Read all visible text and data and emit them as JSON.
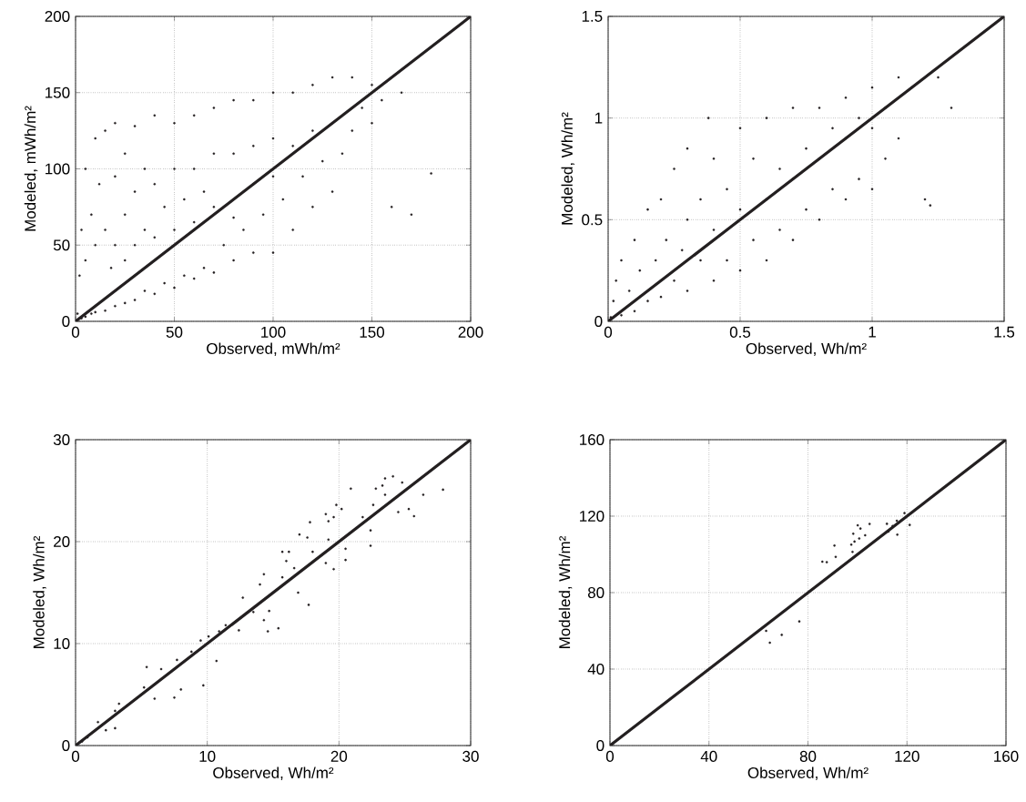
{
  "chart_data": [
    {
      "type": "scatter",
      "xlabel": "Observed, mWh/m²",
      "ylabel": "Modeled, mWh/m²",
      "xlim": [
        0,
        200
      ],
      "ylim": [
        0,
        200
      ],
      "xticks": [
        0,
        50,
        100,
        150,
        200
      ],
      "yticks": [
        0,
        50,
        100,
        150,
        200
      ],
      "grid": true,
      "series": [
        {
          "type": "scatter",
          "marker": "circle",
          "color": "#231f20",
          "x": [
            1,
            2,
            3,
            3,
            5,
            5,
            5,
            8,
            8,
            10,
            10,
            10,
            12,
            15,
            15,
            15,
            18,
            20,
            20,
            20,
            20,
            25,
            25,
            25,
            25,
            30,
            30,
            30,
            30,
            35,
            35,
            35,
            40,
            40,
            40,
            40,
            45,
            45,
            50,
            50,
            50,
            50,
            55,
            55,
            60,
            60,
            60,
            60,
            65,
            65,
            70,
            70,
            70,
            70,
            75,
            80,
            80,
            80,
            80,
            85,
            90,
            90,
            90,
            90,
            95,
            100,
            100,
            100,
            100,
            105,
            110,
            110,
            110,
            115,
            120,
            120,
            120,
            125,
            130,
            130,
            130,
            135,
            140,
            140,
            145,
            150,
            150,
            155,
            160,
            165,
            170,
            180
          ],
          "values": [
            5,
            30,
            60,
            2,
            100,
            40,
            3,
            70,
            5,
            120,
            50,
            6,
            90,
            125,
            60,
            7,
            35,
            130,
            95,
            50,
            10,
            110,
            70,
            40,
            12,
            128,
            85,
            50,
            14,
            100,
            60,
            20,
            135,
            90,
            55,
            18,
            75,
            25,
            130,
            100,
            60,
            22,
            80,
            30,
            135,
            100,
            65,
            28,
            85,
            35,
            140,
            110,
            75,
            32,
            50,
            145,
            110,
            68,
            40,
            60,
            145,
            115,
            90,
            45,
            70,
            150,
            120,
            95,
            45,
            80,
            150,
            115,
            60,
            95,
            155,
            125,
            75,
            105,
            160,
            130,
            85,
            110,
            160,
            125,
            140,
            155,
            130,
            145,
            75,
            150,
            70,
            97
          ]
        },
        {
          "type": "line",
          "marker": "none",
          "color": "#231f20",
          "x": [
            0,
            200
          ],
          "values": [
            0,
            200
          ]
        }
      ]
    },
    {
      "type": "scatter",
      "xlabel": "Observed, Wh/m²",
      "ylabel": "Modeled, Wh/m²",
      "xlim": [
        0,
        1.5
      ],
      "ylim": [
        0,
        1.5
      ],
      "xticks": [
        0,
        0.5,
        1,
        1.5
      ],
      "yticks": [
        0,
        0.5,
        1,
        1.5
      ],
      "grid": true,
      "series": [
        {
          "type": "scatter",
          "marker": "circle",
          "color": "#231f20",
          "x": [
            0.01,
            0.02,
            0.03,
            0.05,
            0.05,
            0.08,
            0.1,
            0.1,
            0.12,
            0.15,
            0.15,
            0.18,
            0.2,
            0.2,
            0.22,
            0.25,
            0.25,
            0.28,
            0.3,
            0.3,
            0.3,
            0.35,
            0.35,
            0.38,
            0.4,
            0.4,
            0.4,
            0.45,
            0.45,
            0.5,
            0.5,
            0.5,
            0.55,
            0.55,
            0.6,
            0.6,
            0.6,
            0.65,
            0.65,
            0.7,
            0.7,
            0.7,
            0.75,
            0.75,
            0.8,
            0.8,
            0.8,
            0.85,
            0.85,
            0.9,
            0.9,
            0.9,
            0.95,
            0.95,
            1.0,
            1.0,
            1.0,
            1.05,
            1.05,
            1.1,
            1.1,
            1.15,
            1.2,
            1.22,
            1.25,
            1.3
          ],
          "values": [
            0.02,
            0.1,
            0.2,
            0.03,
            0.3,
            0.15,
            0.4,
            0.05,
            0.25,
            0.55,
            0.1,
            0.3,
            0.6,
            0.12,
            0.4,
            0.75,
            0.2,
            0.35,
            0.85,
            0.5,
            0.15,
            0.6,
            0.3,
            1.0,
            0.8,
            0.45,
            0.2,
            0.65,
            0.3,
            0.95,
            0.55,
            0.25,
            0.8,
            0.4,
            1.0,
            0.6,
            0.3,
            0.75,
            0.45,
            1.05,
            0.7,
            0.4,
            0.85,
            0.55,
            1.05,
            0.8,
            0.5,
            0.95,
            0.65,
            1.1,
            0.9,
            0.6,
            1.0,
            0.7,
            1.15,
            0.95,
            0.65,
            1.05,
            0.8,
            1.2,
            0.9,
            1.15,
            0.6,
            0.57,
            1.2,
            1.05
          ]
        },
        {
          "type": "line",
          "marker": "none",
          "color": "#231f20",
          "x": [
            0,
            1.5
          ],
          "values": [
            0,
            1.5
          ]
        }
      ]
    },
    {
      "type": "scatter",
      "xlabel": "Observed, Wh/m²",
      "ylabel": "Modeled, Wh/m²",
      "xlim": [
        0,
        30
      ],
      "ylim": [
        0,
        30
      ],
      "xticks": [
        0,
        10,
        20,
        30
      ],
      "yticks": [
        0,
        10,
        20,
        30
      ],
      "grid": true,
      "series": [
        {
          "type": "scatter",
          "marker": "circle",
          "color": "#231f20",
          "x": [
            27.9,
            26.4,
            25.7,
            25.3,
            24.8,
            24.1,
            23.5,
            23.3,
            22.8,
            23.5,
            22.6,
            24.5,
            22.4,
            22.4,
            21.8,
            20.9,
            20.5,
            20.5,
            19.8,
            19.6,
            20.2,
            19.0,
            19.2,
            19.2,
            19.6,
            19.0,
            17.8,
            17.7,
            17.0,
            17.6,
            18.0,
            16.2,
            15.7,
            15.7,
            16.0,
            16.6,
            16.9,
            15.4,
            14.6,
            14.3,
            14.0,
            14.7,
            14.3,
            12.7,
            12.4,
            13.5,
            11.4,
            10.9,
            10.7,
            10.1,
            9.5,
            9.7,
            8.8,
            8.0,
            7.5,
            7.7,
            6.5,
            5.4,
            6.0,
            5.2,
            3.3,
            3.0,
            2.3,
            3.0,
            1.7,
            0.9,
            0.5
          ],
          "values": [
            25.1,
            24.6,
            22.5,
            23.2,
            25.8,
            26.4,
            26.2,
            25.5,
            25.2,
            24.6,
            23.6,
            22.9,
            19.6,
            21.1,
            22.4,
            25.2,
            19.3,
            18.2,
            23.6,
            22.4,
            23.2,
            22.7,
            22.0,
            20.2,
            17.3,
            17.9,
            21.9,
            13.8,
            20.7,
            20.4,
            19.0,
            19.0,
            19.0,
            16.5,
            18.1,
            17.4,
            15.0,
            11.5,
            11.2,
            16.8,
            15.8,
            13.2,
            12.3,
            14.5,
            11.3,
            13.1,
            11.8,
            11.2,
            8.3,
            10.7,
            10.3,
            5.9,
            9.2,
            5.5,
            4.7,
            8.4,
            7.5,
            7.7,
            4.6,
            5.7,
            4.1,
            1.7,
            1.5,
            3.4,
            2.3,
            0.8,
            0.4
          ]
        },
        {
          "type": "line",
          "marker": "none",
          "color": "#231f20",
          "x": [
            0,
            30
          ],
          "values": [
            0,
            30
          ]
        }
      ]
    },
    {
      "type": "scatter",
      "xlabel": "Observed, Wh/m²",
      "ylabel": "Modeled, Wh/m²",
      "xlim": [
        0,
        160
      ],
      "ylim": [
        0,
        160
      ],
      "xticks": [
        0,
        40,
        80,
        120,
        160
      ],
      "yticks": [
        0,
        40,
        80,
        120,
        160
      ],
      "grid": true,
      "series": [
        {
          "type": "scatter",
          "marker": "circle",
          "color": "#231f20",
          "x": [
            63.1,
            64.6,
            69.4,
            76.5,
            85.8,
            87.6,
            90.7,
            91.2,
            97.5,
            98.0,
            98.3,
            98.8,
            100.1,
            100.7,
            101.2,
            103.1,
            104.9,
            111.9,
            112.5,
            114.2,
            115.9,
            116.1,
            119.0,
            121.1
          ],
          "values": [
            60.0,
            53.8,
            57.9,
            64.9,
            96.2,
            95.9,
            104.6,
            98.7,
            105.1,
            101.3,
            110.8,
            106.7,
            115.2,
            108.3,
            113.5,
            110.0,
            115.9,
            116.0,
            111.9,
            114.8,
            117.6,
            110.3,
            121.6,
            115.4
          ]
        },
        {
          "type": "line",
          "marker": "none",
          "color": "#231f20",
          "x": [
            0,
            160
          ],
          "values": [
            0,
            160
          ]
        }
      ]
    }
  ]
}
